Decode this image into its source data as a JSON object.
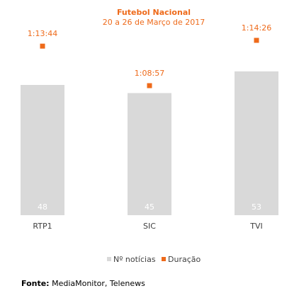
{
  "chart_data": {
    "type": "bar",
    "title": "Futebol Nacional",
    "subtitle": "20 a 26 de Março de 2017",
    "categories": [
      "RTP1",
      "SIC",
      "TVI"
    ],
    "series": [
      {
        "name": "Nº notícias",
        "values": [
          48,
          45,
          53
        ],
        "color": "#d9d9d9"
      },
      {
        "name": "Duração",
        "values": [
          "1:13:44",
          "1:08:57",
          "1:14:26"
        ],
        "seconds": [
          4424,
          4137,
          4466
        ],
        "color": "#ee6a1a"
      }
    ],
    "legend_position": "bottom",
    "grid": false
  },
  "source": {
    "label": "Fonte:",
    "text": "MediaMonitor, Telenews"
  }
}
